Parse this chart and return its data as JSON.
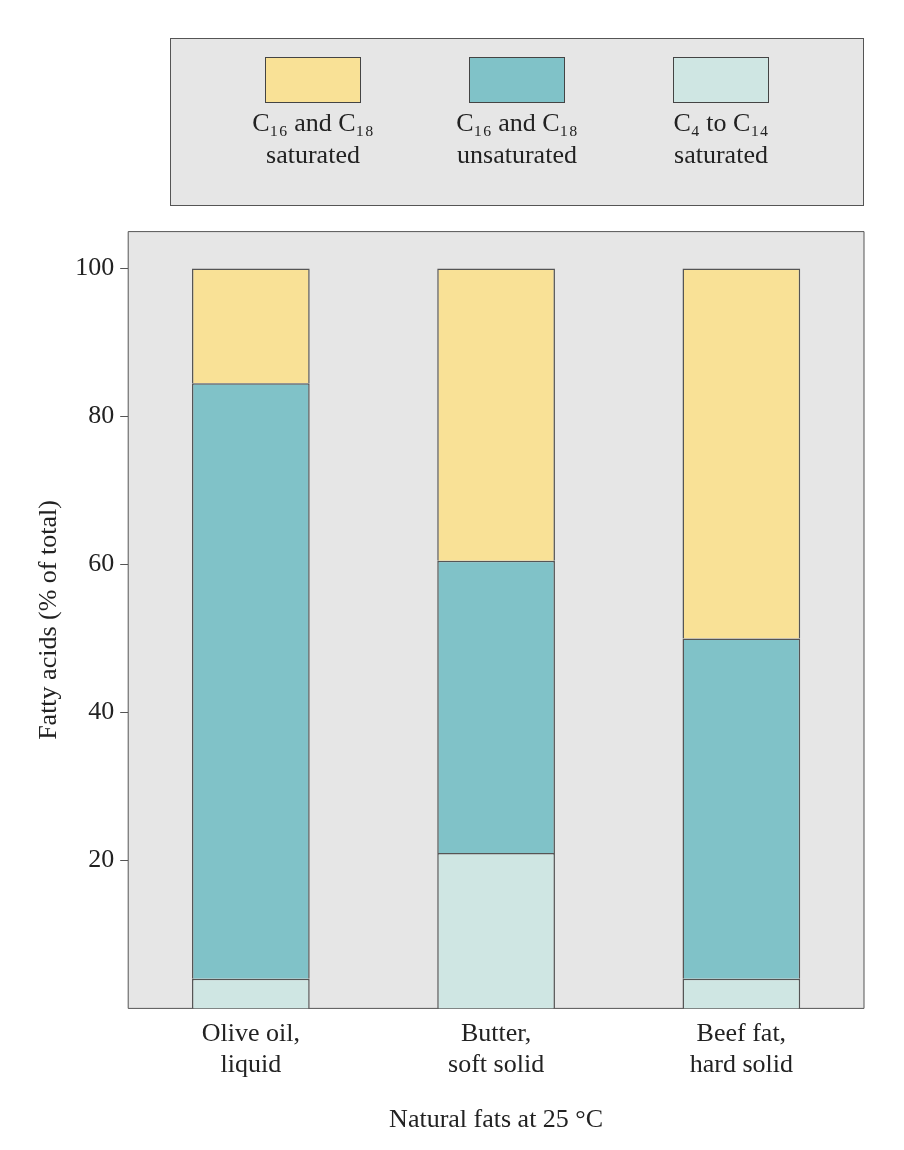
{
  "chart_data": {
    "type": "bar",
    "stacked": true,
    "xlabel": "Natural fats at 25 °C",
    "ylabel": "Fatty acids (% of total)",
    "categories": [
      "Olive oil, liquid",
      "Butter, soft solid",
      "Beef fat, hard solid"
    ],
    "series": [
      {
        "name": "C₄ to C₁₄ saturated",
        "color": "#cfe6e3",
        "values": [
          4,
          21,
          4
        ]
      },
      {
        "name": "C₁₆ and C₁₈ unsaturated",
        "color": "#80c2c8",
        "values": [
          80.5,
          39.5,
          46
        ]
      },
      {
        "name": "C₁₆ and C₁₈ saturated",
        "color": "#f9e196",
        "values": [
          15.5,
          39.5,
          50
        ]
      }
    ],
    "ylim": [
      0,
      105
    ],
    "yticks": [
      20,
      40,
      60,
      80,
      100
    ],
    "grid": false,
    "legend": "top"
  }
}
